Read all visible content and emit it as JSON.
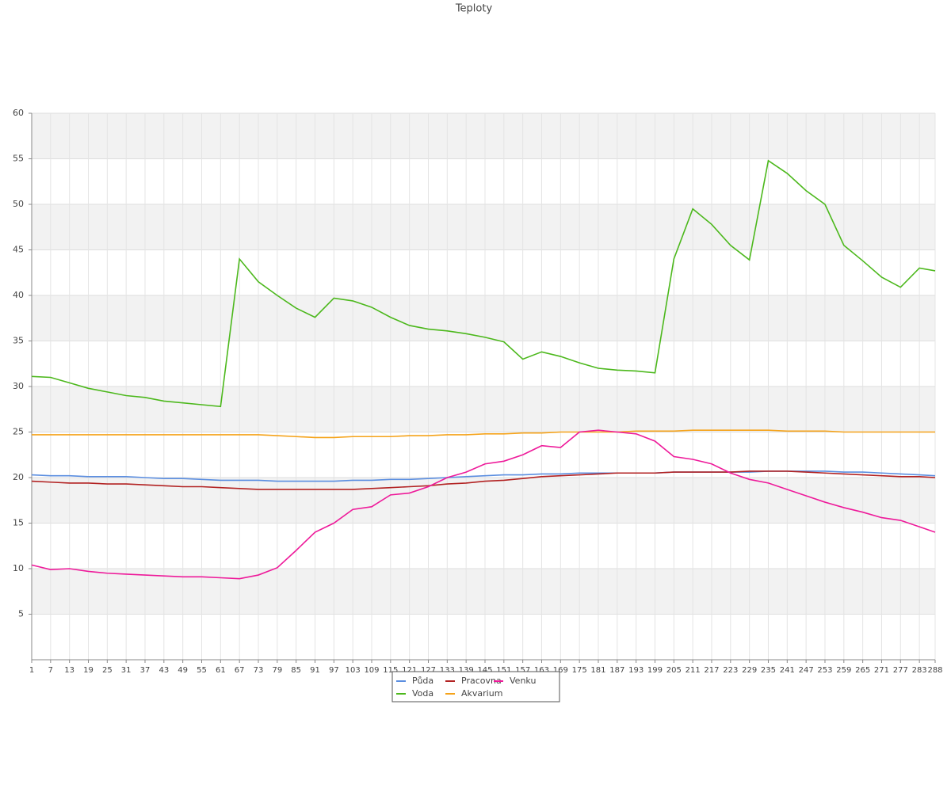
{
  "chart_data": {
    "type": "line",
    "title": "Teploty",
    "x": [
      1,
      7,
      13,
      19,
      25,
      31,
      37,
      43,
      49,
      55,
      61,
      67,
      73,
      79,
      85,
      91,
      97,
      103,
      109,
      115,
      121,
      127,
      133,
      139,
      145,
      151,
      157,
      163,
      169,
      175,
      181,
      187,
      193,
      199,
      205,
      211,
      217,
      223,
      229,
      235,
      241,
      247,
      253,
      259,
      265,
      271,
      277,
      283,
      288
    ],
    "xlim": [
      1,
      288
    ],
    "ylim": [
      0,
      60
    ],
    "yticks": [
      5,
      10,
      15,
      20,
      25,
      30,
      35,
      40,
      45,
      50,
      55,
      60
    ],
    "grid": true,
    "legend": "bottom",
    "series": [
      {
        "name": "Půda",
        "color": "#5b8ee0",
        "values": [
          20.3,
          20.2,
          20.2,
          20.1,
          20.1,
          20.1,
          20.0,
          19.9,
          19.9,
          19.8,
          19.7,
          19.7,
          19.7,
          19.6,
          19.6,
          19.6,
          19.6,
          19.7,
          19.7,
          19.8,
          19.8,
          19.9,
          20.0,
          20.1,
          20.2,
          20.3,
          20.3,
          20.4,
          20.4,
          20.5,
          20.5,
          20.5,
          20.5,
          20.5,
          20.6,
          20.6,
          20.6,
          20.6,
          20.6,
          20.7,
          20.7,
          20.7,
          20.7,
          20.6,
          20.6,
          20.5,
          20.4,
          20.3,
          20.2
        ]
      },
      {
        "name": "Voda",
        "color": "#4cb81c",
        "values": [
          31.1,
          31.0,
          30.4,
          29.8,
          29.4,
          29.0,
          28.8,
          28.4,
          28.2,
          28.0,
          27.8,
          44.0,
          41.5,
          40.0,
          38.6,
          37.6,
          39.7,
          39.4,
          38.7,
          37.6,
          36.7,
          36.3,
          36.1,
          35.8,
          35.4,
          34.9,
          33.0,
          33.8,
          33.3,
          32.6,
          32.0,
          31.8,
          31.7,
          31.5,
          44.0,
          49.5,
          47.8,
          45.5,
          43.9,
          54.8,
          53.4,
          51.5,
          50.0,
          45.5,
          43.8,
          42.0,
          40.9,
          43.0,
          42.7
        ]
      },
      {
        "name": "Pracovna",
        "color": "#b22222",
        "values": [
          19.6,
          19.5,
          19.4,
          19.4,
          19.3,
          19.3,
          19.2,
          19.1,
          19.0,
          19.0,
          18.9,
          18.8,
          18.7,
          18.7,
          18.7,
          18.7,
          18.7,
          18.7,
          18.8,
          18.9,
          19.0,
          19.1,
          19.3,
          19.4,
          19.6,
          19.7,
          19.9,
          20.1,
          20.2,
          20.3,
          20.4,
          20.5,
          20.5,
          20.5,
          20.6,
          20.6,
          20.6,
          20.6,
          20.7,
          20.7,
          20.7,
          20.6,
          20.5,
          20.4,
          20.3,
          20.2,
          20.1,
          20.1,
          20.0
        ]
      },
      {
        "name": "Akvarium",
        "color": "#f5a31a",
        "values": [
          24.7,
          24.7,
          24.7,
          24.7,
          24.7,
          24.7,
          24.7,
          24.7,
          24.7,
          24.7,
          24.7,
          24.7,
          24.7,
          24.6,
          24.5,
          24.4,
          24.4,
          24.5,
          24.5,
          24.5,
          24.6,
          24.6,
          24.7,
          24.7,
          24.8,
          24.8,
          24.9,
          24.9,
          25.0,
          25.0,
          25.0,
          25.0,
          25.1,
          25.1,
          25.1,
          25.2,
          25.2,
          25.2,
          25.2,
          25.2,
          25.1,
          25.1,
          25.1,
          25.0,
          25.0,
          25.0,
          25.0,
          25.0,
          25.0
        ]
      },
      {
        "name": "Venku",
        "color": "#ee1a9a",
        "values": [
          10.4,
          9.9,
          10.0,
          9.7,
          9.5,
          9.4,
          9.3,
          9.2,
          9.1,
          9.1,
          9.0,
          8.9,
          9.3,
          10.1,
          12.0,
          14.0,
          15.0,
          16.5,
          16.8,
          18.1,
          18.3,
          19.0,
          20.0,
          20.6,
          21.5,
          21.8,
          22.5,
          23.5,
          23.3,
          25.0,
          25.2,
          25.0,
          24.8,
          24.0,
          22.3,
          22.0,
          21.5,
          20.5,
          19.8,
          19.4,
          18.7,
          18.0,
          17.3,
          16.7,
          16.2,
          15.6,
          15.3,
          14.6,
          14.0
        ]
      }
    ]
  }
}
